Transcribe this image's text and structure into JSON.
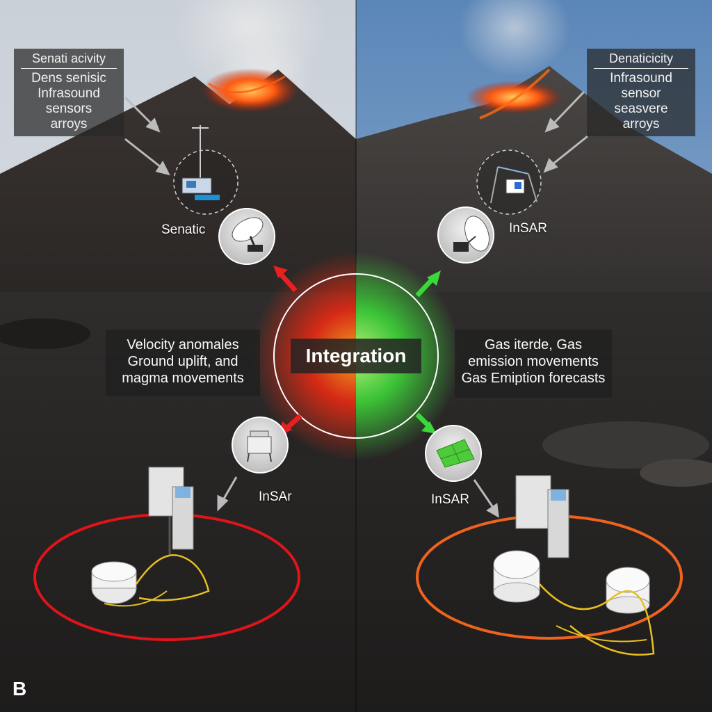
{
  "left_panel": {
    "label_box": {
      "title": "Senati acivity",
      "lines": [
        "Dens senisic",
        "Infrasound",
        "sensors",
        "arroys"
      ]
    },
    "seismic_tag": "Senatic",
    "insar_tag": "InSAr",
    "description": [
      "Velocity anomales",
      "Ground uplift, and",
      "magma movements"
    ],
    "ring_color": "#e0141a",
    "glow_color": "#ff2a10"
  },
  "right_panel": {
    "label_box": {
      "title": "Denaticicity",
      "lines": [
        "Infrasound",
        "sensor",
        "seasvere",
        "arroys"
      ]
    },
    "insar_top_tag": "InSAR",
    "insar_bottom_tag": "InSAR",
    "description": [
      "Gas iterde, Gas",
      "emission movements",
      "Gas Emiption forecasts"
    ],
    "ring_color": "#f0631f",
    "glow_color": "#3fe83a"
  },
  "center": {
    "label": "Integration"
  },
  "panel_letter": "B",
  "icons": {
    "top_left_sensor": "seismometer-station-icon",
    "left_dish": "satellite-dish-icon",
    "left_box": "sensor-box-icon",
    "right_tripod": "tripod-sensor-icon",
    "right_dish": "satellite-dish-icon",
    "right_solar": "solar-panel-icon"
  }
}
